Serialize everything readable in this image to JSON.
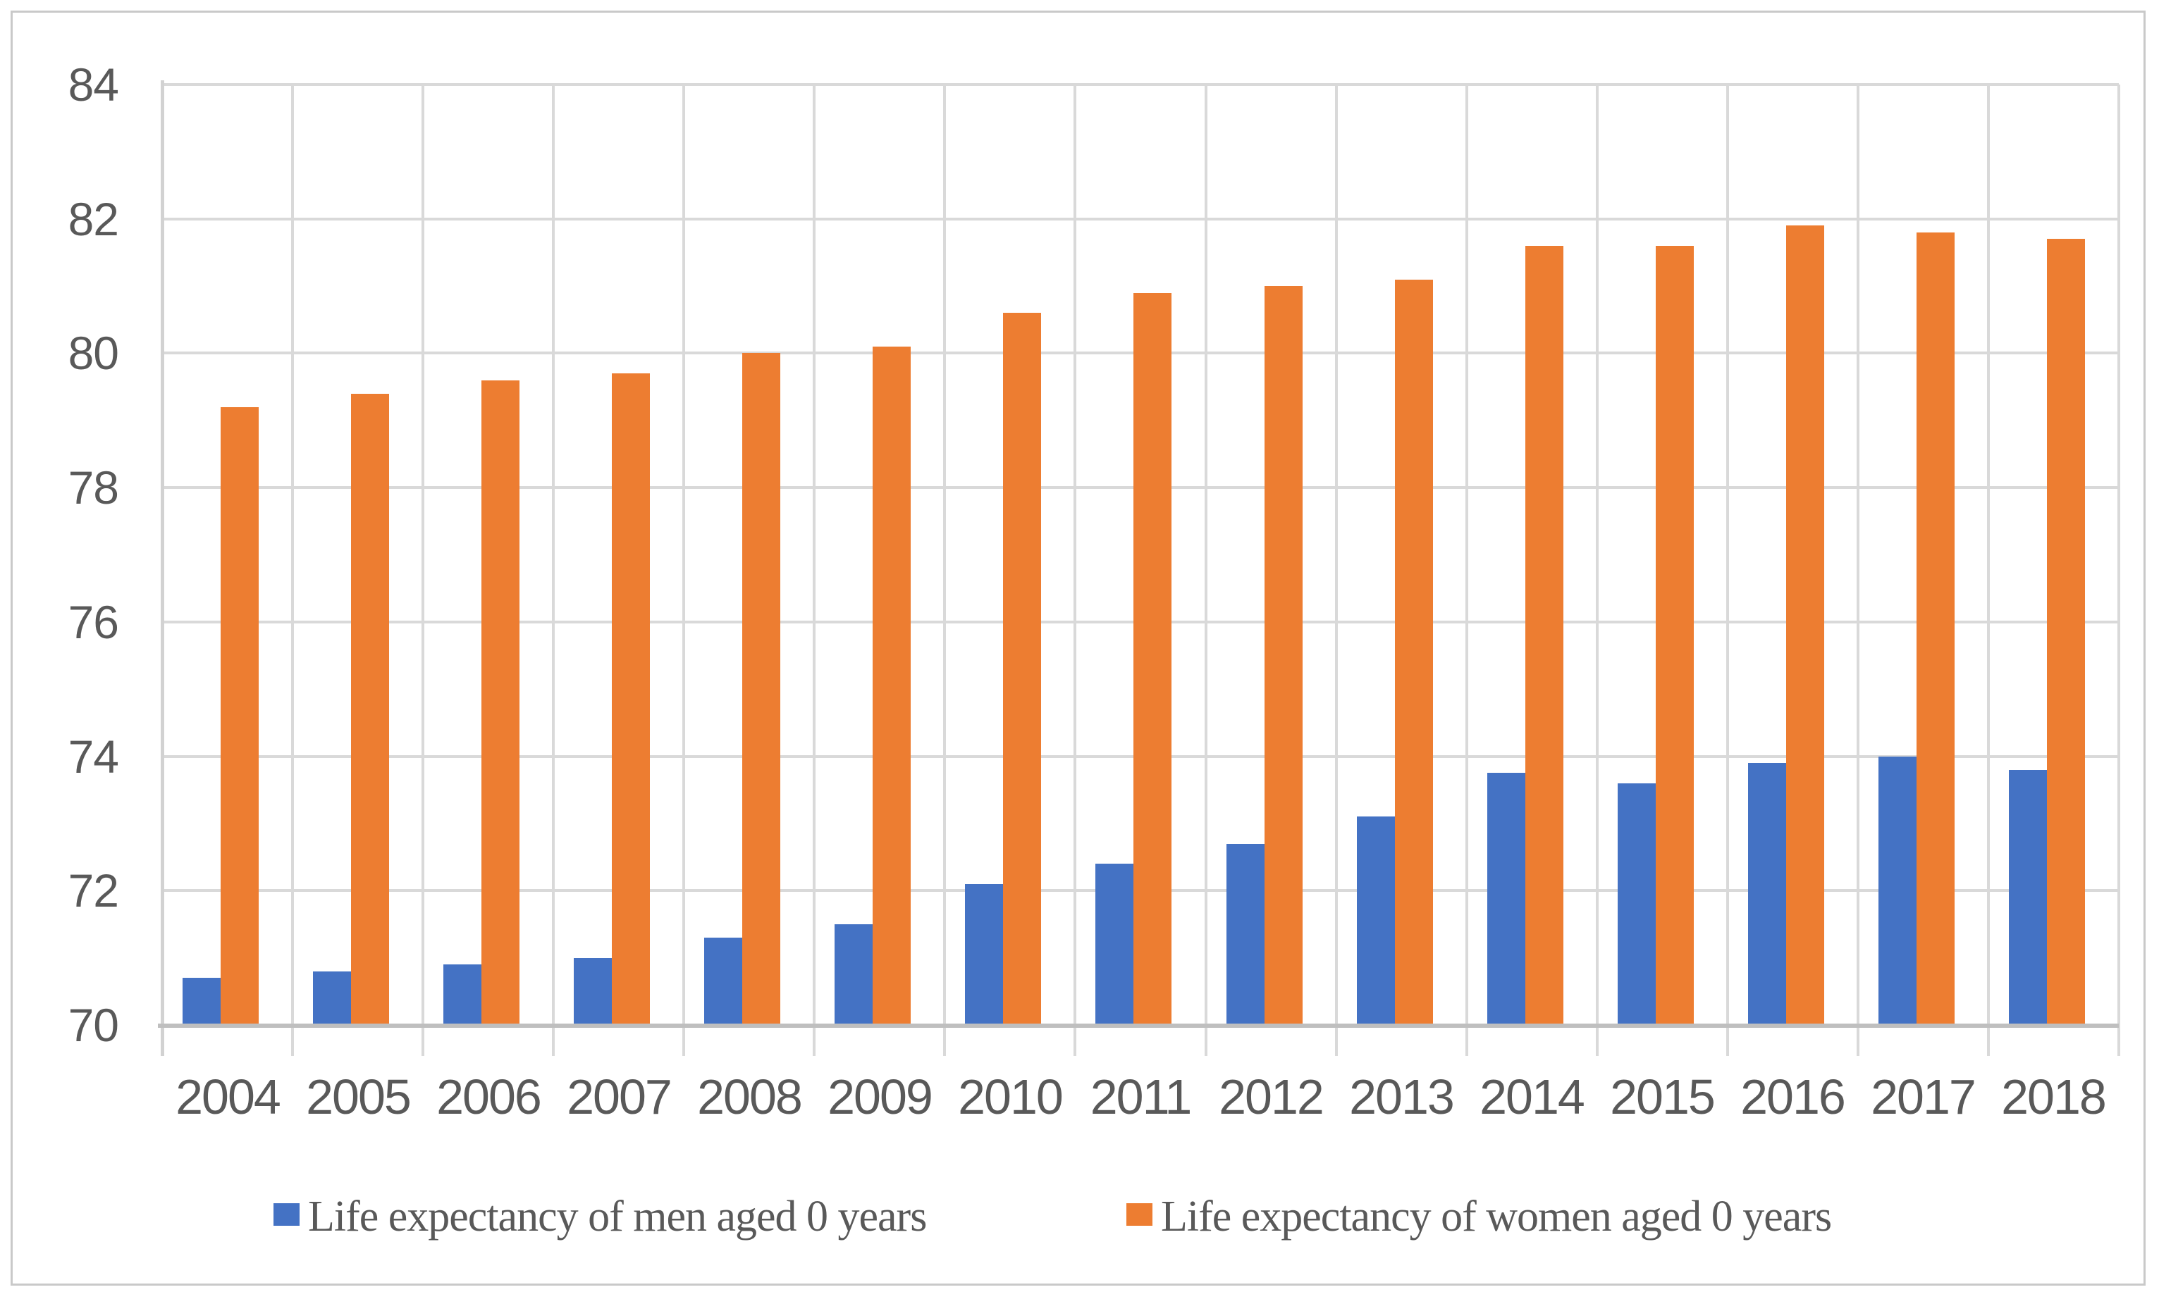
{
  "chart_data": {
    "type": "bar",
    "categories": [
      "2004",
      "2005",
      "2006",
      "2007",
      "2008",
      "2009",
      "2010",
      "2011",
      "2012",
      "2013",
      "2014",
      "2015",
      "2016",
      "2017",
      "2018"
    ],
    "series": [
      {
        "name": "Life expectancy of men aged 0 years",
        "color": "#4472C4",
        "values": [
          70.7,
          70.8,
          70.9,
          71.0,
          71.3,
          71.5,
          72.1,
          72.4,
          72.7,
          73.1,
          73.75,
          73.6,
          73.9,
          74.0,
          73.8
        ]
      },
      {
        "name": "Life expectancy of women aged 0 years",
        "color": "#ED7D31",
        "values": [
          79.2,
          79.4,
          79.6,
          79.7,
          80.0,
          80.1,
          80.6,
          80.9,
          81.0,
          81.1,
          81.6,
          81.6,
          81.9,
          81.8,
          81.7
        ]
      }
    ],
    "title": "",
    "xlabel": "",
    "ylabel": "",
    "ylim": [
      70,
      84
    ],
    "yticks": [
      70,
      72,
      74,
      76,
      78,
      80,
      82,
      84
    ],
    "grid": "horizontal major gridlines + vertical category separators",
    "legend_position": "bottom"
  },
  "colors": {
    "background": "#FFFFFF",
    "frame_border": "#C9C9C9",
    "gridline": "#D9D9D9",
    "baseline": "#BFBFBF",
    "axis_text": "#595959",
    "legend_text": "#595959",
    "series_men": "#4472C4",
    "series_women": "#ED7D31"
  }
}
